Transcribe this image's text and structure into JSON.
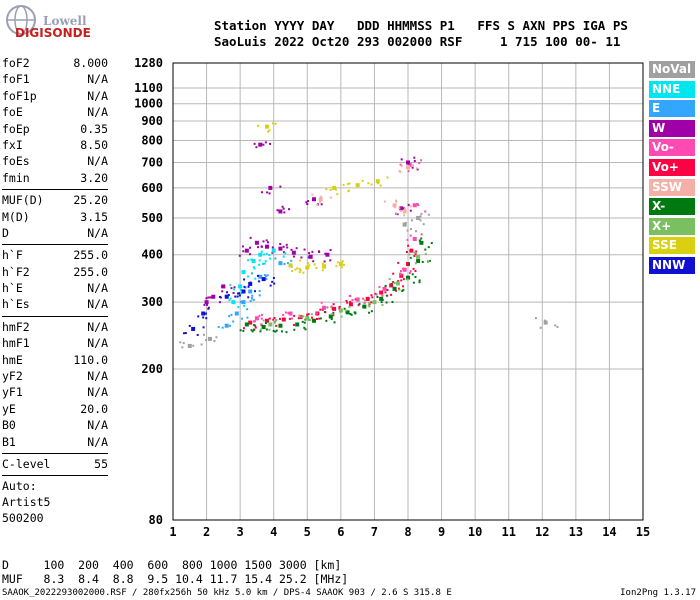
{
  "logo": {
    "line1": "Lowell",
    "line2": "DIGISONDE"
  },
  "header": {
    "line1": "Station YYYY DAY   DDD HHMMSS P1   FFS S AXN PPS IGA PS",
    "line2": "SaoLuis 2022 Oct20 293 002000 RSF     1 715 100 00- 11"
  },
  "params": {
    "groups": [
      [
        {
          "label": "foF2",
          "value": "8.000"
        },
        {
          "label": "foF1",
          "value": "N/A"
        },
        {
          "label": "foF1p",
          "value": "N/A"
        },
        {
          "label": "foE",
          "value": "N/A"
        },
        {
          "label": "foEp",
          "value": "0.35"
        },
        {
          "label": "fxI",
          "value": "8.50"
        },
        {
          "label": "foEs",
          "value": "N/A"
        },
        {
          "label": "fmin",
          "value": "3.20"
        }
      ],
      [
        {
          "label": "MUF(D)",
          "value": "25.20"
        },
        {
          "label": "M(D)",
          "value": "3.15"
        },
        {
          "label": "D",
          "value": "N/A"
        }
      ],
      [
        {
          "label": "h`F",
          "value": "255.0"
        },
        {
          "label": "h`F2",
          "value": "255.0"
        },
        {
          "label": "h`E",
          "value": "N/A"
        },
        {
          "label": "h`Es",
          "value": "N/A"
        }
      ],
      [
        {
          "label": "hmF2",
          "value": "N/A"
        },
        {
          "label": "hmF1",
          "value": "N/A"
        },
        {
          "label": "hmE",
          "value": "110.0"
        },
        {
          "label": "yF2",
          "value": "N/A"
        },
        {
          "label": "yF1",
          "value": "N/A"
        },
        {
          "label": "yE",
          "value": "20.0"
        },
        {
          "label": "B0",
          "value": "N/A"
        },
        {
          "label": "B1",
          "value": "N/A"
        }
      ],
      [
        {
          "label": "C-level",
          "value": "55"
        }
      ]
    ],
    "extra": [
      "Auto:",
      "Artist5",
      "500200"
    ]
  },
  "legend": [
    {
      "label": "NoVal",
      "color": "#a0a0a0"
    },
    {
      "label": "NNE",
      "color": "#00e6f0"
    },
    {
      "label": "E",
      "color": "#33a6ff"
    },
    {
      "label": "W",
      "color": "#a000a8"
    },
    {
      "label": "Vo-",
      "color": "#ff4ab4"
    },
    {
      "label": "Vo+",
      "color": "#ff0044"
    },
    {
      "label": "SSW",
      "color": "#f4b0a8"
    },
    {
      "label": "X-",
      "color": "#007a10"
    },
    {
      "label": "X+",
      "color": "#7ac060"
    },
    {
      "label": "SSE",
      "color": "#d8d010"
    },
    {
      "label": "NNW",
      "color": "#1010d0"
    }
  ],
  "bottom": {
    "line1": "D     100  200  400  600  800 1000 1500 3000 [km]",
    "line2": "MUF   8.3  8.4  8.8  9.5 10.4 11.7 15.4 25.2 [MHz]",
    "footer": "SAAOK_2022293002000.RSF / 280fx256h 50 kHz 5.0 km / DPS-4 SAAOK 903 / 2.6 S 315.8 E",
    "version": "Ion2Png 1.3.17"
  },
  "chart_data": {
    "type": "scatter",
    "title": "",
    "xlabel": "",
    "ylabel": "",
    "xlim": [
      1,
      15
    ],
    "ylim": [
      80,
      1280
    ],
    "yscale": "log",
    "x_ticks": [
      1,
      2,
      3,
      4,
      5,
      6,
      7,
      8,
      9,
      10,
      11,
      12,
      13,
      14,
      15
    ],
    "y_ticks": [
      80,
      200,
      300,
      400,
      500,
      600,
      700,
      800,
      900,
      1000,
      1100,
      1280
    ],
    "grid": true,
    "series": [
      {
        "name": "Vo+",
        "color": "#ff0044",
        "points": [
          [
            3.3,
            265
          ],
          [
            3.8,
            268
          ],
          [
            4.3,
            270
          ],
          [
            4.8,
            274
          ],
          [
            5.3,
            280
          ],
          [
            5.8,
            288
          ],
          [
            6.3,
            296
          ],
          [
            6.8,
            306
          ],
          [
            7.2,
            318
          ],
          [
            7.5,
            332
          ],
          [
            7.8,
            352
          ],
          [
            8.0,
            378
          ],
          [
            8.1,
            410
          ]
        ]
      },
      {
        "name": "Vo-",
        "color": "#ff4ab4",
        "points": [
          [
            3.5,
            272
          ],
          [
            4.5,
            280
          ],
          [
            5.5,
            290
          ],
          [
            6.5,
            305
          ],
          [
            7.3,
            325
          ],
          [
            7.9,
            365
          ],
          [
            8.2,
            440
          ],
          [
            8.2,
            540
          ],
          [
            8.05,
            690
          ]
        ]
      },
      {
        "name": "X-",
        "color": "#007a10",
        "points": [
          [
            3.2,
            262
          ],
          [
            3.7,
            258
          ],
          [
            4.2,
            260
          ],
          [
            4.7,
            262
          ],
          [
            5.2,
            268
          ],
          [
            5.7,
            275
          ],
          [
            6.2,
            282
          ],
          [
            6.7,
            292
          ],
          [
            7.2,
            306
          ],
          [
            7.6,
            325
          ],
          [
            8.0,
            348
          ],
          [
            8.3,
            385
          ],
          [
            8.4,
            430
          ]
        ]
      },
      {
        "name": "X+",
        "color": "#7ac060",
        "points": [
          [
            3.9,
            262
          ],
          [
            5.0,
            272
          ],
          [
            6.0,
            285
          ],
          [
            7.0,
            300
          ],
          [
            7.7,
            336
          ],
          [
            8.3,
            395
          ]
        ]
      },
      {
        "name": "W",
        "color": "#a000a8",
        "points": [
          [
            2.0,
            300
          ],
          [
            2.2,
            310
          ],
          [
            2.5,
            330
          ],
          [
            3.2,
            410
          ],
          [
            3.5,
            430
          ],
          [
            3.8,
            420
          ],
          [
            4.2,
            415
          ],
          [
            4.6,
            405
          ],
          [
            5.1,
            395
          ],
          [
            5.6,
            400
          ],
          [
            3.9,
            600
          ],
          [
            4.2,
            520
          ],
          [
            5.2,
            560
          ],
          [
            7.8,
            530
          ],
          [
            8.0,
            700
          ],
          [
            3.6,
            780
          ]
        ]
      },
      {
        "name": "NNE",
        "color": "#00e6f0",
        "points": [
          [
            2.8,
            300
          ],
          [
            3.0,
            330
          ],
          [
            3.1,
            360
          ],
          [
            3.4,
            385
          ],
          [
            3.6,
            400
          ],
          [
            4.0,
            410
          ]
        ]
      },
      {
        "name": "E",
        "color": "#33a6ff",
        "points": [
          [
            2.6,
            260
          ],
          [
            2.9,
            280
          ],
          [
            3.1,
            300
          ],
          [
            3.3,
            320
          ],
          [
            3.6,
            350
          ],
          [
            4.2,
            380
          ]
        ]
      },
      {
        "name": "SSE",
        "color": "#d8d010",
        "points": [
          [
            4.5,
            375
          ],
          [
            5.0,
            370
          ],
          [
            5.5,
            372
          ],
          [
            6.0,
            378
          ],
          [
            5.8,
            600
          ],
          [
            6.5,
            610
          ],
          [
            7.1,
            625
          ],
          [
            3.8,
            870
          ]
        ]
      },
      {
        "name": "SSW",
        "color": "#f4b0a8",
        "points": [
          [
            7.6,
            540
          ],
          [
            7.9,
            520
          ],
          [
            8.0,
            680
          ],
          [
            5.4,
            560
          ]
        ]
      },
      {
        "name": "NNW",
        "color": "#1010d0",
        "points": [
          [
            2.6,
            310
          ],
          [
            3.1,
            320
          ],
          [
            3.3,
            335
          ],
          [
            3.7,
            345
          ],
          [
            1.9,
            280
          ],
          [
            1.6,
            255
          ]
        ]
      },
      {
        "name": "NoVal",
        "color": "#a0a0a0",
        "points": [
          [
            1.5,
            230
          ],
          [
            2.1,
            240
          ],
          [
            12.1,
            265
          ],
          [
            7.9,
            480
          ],
          [
            8.3,
            500
          ]
        ]
      }
    ]
  }
}
